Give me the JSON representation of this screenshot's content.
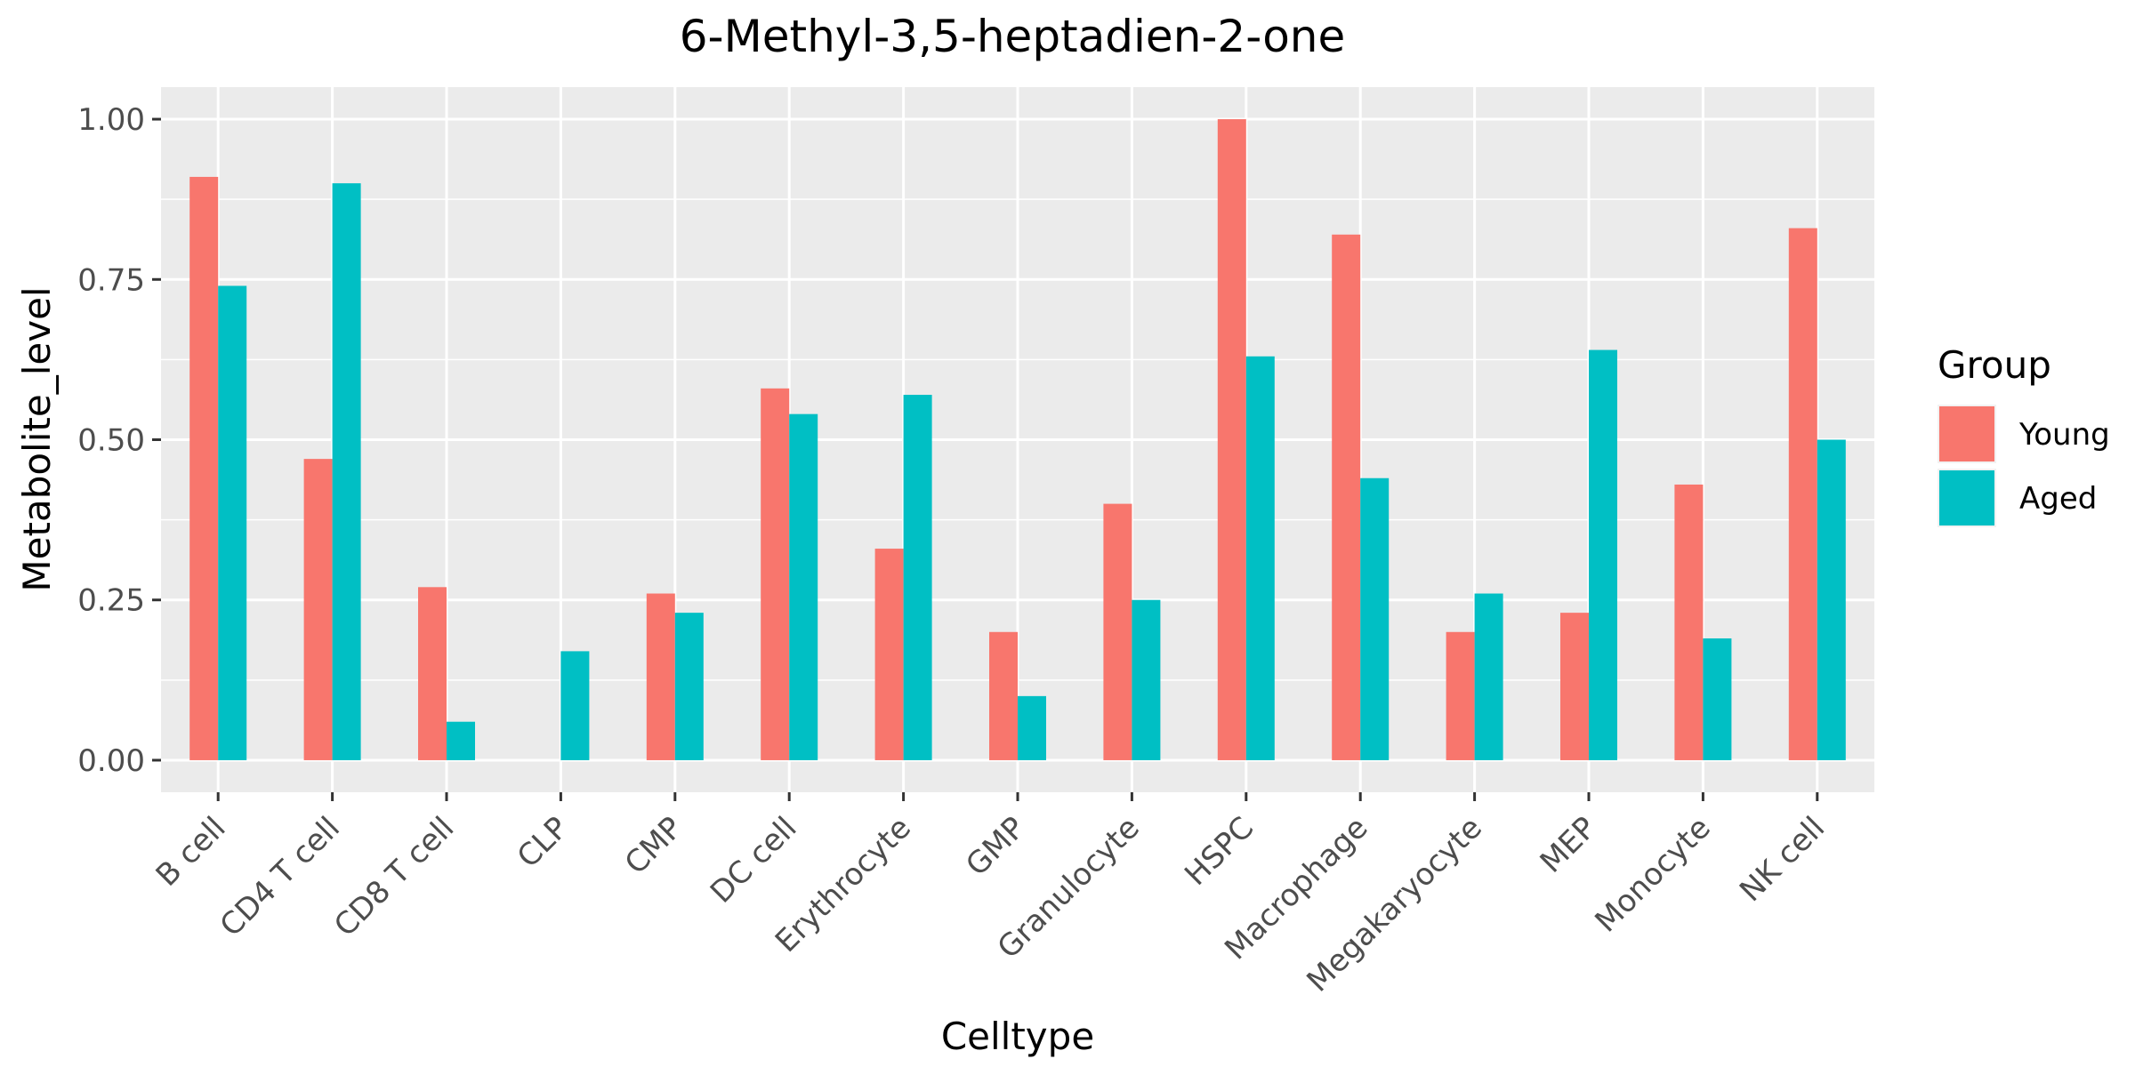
{
  "chart_data": {
    "type": "bar",
    "title": "6-Methyl-3,5-heptadien-2-one",
    "xlabel": "Celltype",
    "ylabel": "Metabolite_level",
    "categories": [
      "B cell",
      "CD4 T cell",
      "CD8 T cell",
      "CLP",
      "CMP",
      "DC cell",
      "Erythrocyte",
      "GMP",
      "Granulocyte",
      "HSPC",
      "Macrophage",
      "Megakaryocyte",
      "MEP",
      "Monocyte",
      "NK cell"
    ],
    "series": [
      {
        "name": "Young",
        "color": "#F8766D",
        "values": [
          0.91,
          0.47,
          0.27,
          0.0,
          0.26,
          0.58,
          0.33,
          0.2,
          0.4,
          1.0,
          0.82,
          0.2,
          0.23,
          0.43,
          0.83
        ]
      },
      {
        "name": "Aged",
        "color": "#00BFC4",
        "values": [
          0.74,
          0.9,
          0.06,
          0.17,
          0.23,
          0.54,
          0.57,
          0.1,
          0.25,
          0.63,
          0.44,
          0.26,
          0.64,
          0.19,
          0.5
        ]
      }
    ],
    "ylim": [
      -0.05,
      1.05
    ],
    "yticks": [
      0,
      0.25,
      0.5,
      0.75,
      1.0
    ],
    "ytick_labels": [
      "0.00",
      "0.25",
      "0.50",
      "0.75",
      "1.00"
    ],
    "legend": {
      "title": "Group",
      "position": "right"
    },
    "grid": true,
    "panel_background": "#EBEBEB"
  }
}
